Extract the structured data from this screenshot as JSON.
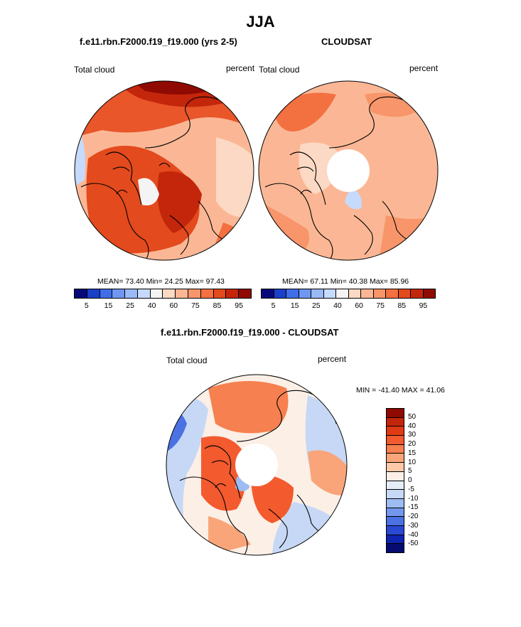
{
  "title": "JJA",
  "panel1": {
    "title": "f.e11.rbn.F2000.f19_f19.000 (yrs 2-5)",
    "left_label": "Total cloud",
    "right_label": "percent",
    "stats": "MEAN=  73.40  Min=  24.25  Max=  97.43"
  },
  "panel2": {
    "title": "CLOUDSAT",
    "left_label": "Total cloud",
    "right_label": "percent",
    "stats": "MEAN=  67.11  Min=  40.38  Max=  85.96"
  },
  "panel3": {
    "title": "f.e11.rbn.F2000.f19_f19.000 - CLOUDSAT",
    "left_label": "Total cloud",
    "right_label": "percent",
    "stats": "MIN = -41.40 MAX =  41.06"
  },
  "colorbar_abs": {
    "colors": [
      "#08087a",
      "#1a3fc9",
      "#3f6ee8",
      "#6f96f2",
      "#9ab9f7",
      "#c6dafb",
      "#f4f4f4",
      "#fcd9c4",
      "#fbb795",
      "#f8956a",
      "#f37040",
      "#e34a1d",
      "#c4260c",
      "#8f0a02"
    ],
    "ticks": [
      "5",
      "15",
      "25",
      "40",
      "60",
      "75",
      "85",
      "95"
    ]
  },
  "colorbar_diff": {
    "colors": [
      "#8f0a02",
      "#c4260c",
      "#e03a15",
      "#f35a2e",
      "#f6804f",
      "#f9a579",
      "#fccaa9",
      "#fbefe6",
      "#e4edf8",
      "#c6d8f5",
      "#9cbcf2",
      "#7397ec",
      "#4b71e2",
      "#2a48d3",
      "#0f24b0",
      "#050b70"
    ],
    "ticks": [
      "50",
      "40",
      "30",
      "20",
      "15",
      "10",
      "5",
      "0",
      "-5",
      "-10",
      "-15",
      "-20",
      "-30",
      "-40",
      "-50"
    ]
  }
}
